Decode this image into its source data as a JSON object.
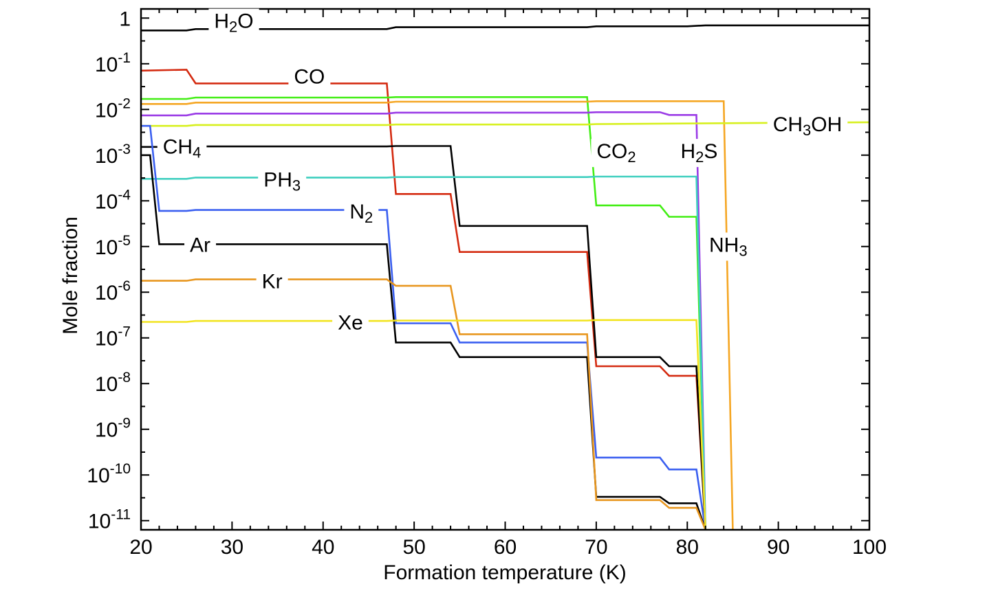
{
  "chart_data": {
    "type": "line",
    "title": "",
    "xlabel": "Formation temperature (K)",
    "ylabel": "Mole fraction",
    "xlim": [
      20,
      100
    ],
    "ylim_log10": [
      -11.2,
      0.2
    ],
    "y_scale": "log",
    "grid": false,
    "x_ticks": [
      {
        "value": 20,
        "label": "20"
      },
      {
        "value": 30,
        "label": "30"
      },
      {
        "value": 40,
        "label": "40"
      },
      {
        "value": 50,
        "label": "50"
      },
      {
        "value": 60,
        "label": "60"
      },
      {
        "value": 70,
        "label": "70"
      },
      {
        "value": 80,
        "label": "80"
      },
      {
        "value": 90,
        "label": "90"
      },
      {
        "value": 100,
        "label": "100"
      }
    ],
    "y_ticks": [
      {
        "exp": 0,
        "base": "1",
        "sup": ""
      },
      {
        "exp": -1,
        "base": "10",
        "sup": "-1"
      },
      {
        "exp": -2,
        "base": "10",
        "sup": "-2"
      },
      {
        "exp": -3,
        "base": "10",
        "sup": "-3"
      },
      {
        "exp": -4,
        "base": "10",
        "sup": "-4"
      },
      {
        "exp": -5,
        "base": "10",
        "sup": "-5"
      },
      {
        "exp": -6,
        "base": "10",
        "sup": "-6"
      },
      {
        "exp": -7,
        "base": "10",
        "sup": "-7"
      },
      {
        "exp": -8,
        "base": "10",
        "sup": "-8"
      },
      {
        "exp": -9,
        "base": "10",
        "sup": "-9"
      },
      {
        "exp": -10,
        "base": "10",
        "sup": "-10"
      },
      {
        "exp": -11,
        "base": "10",
        "sup": "-11"
      }
    ],
    "series": [
      {
        "name": "H2O",
        "label_parts": [
          {
            "t": "H"
          },
          {
            "t": "2",
            "sub": true
          },
          {
            "t": "O"
          }
        ],
        "color": "#000000",
        "label_at": {
          "x": 30.2,
          "log": -0.05
        },
        "points": [
          [
            20,
            -0.27
          ],
          [
            25,
            -0.27
          ],
          [
            26,
            -0.24
          ],
          [
            47,
            -0.24
          ],
          [
            48,
            -0.2
          ],
          [
            69,
            -0.2
          ],
          [
            70,
            -0.18
          ],
          [
            80,
            -0.18
          ],
          [
            82,
            -0.16
          ],
          [
            100,
            -0.16
          ]
        ]
      },
      {
        "name": "CO",
        "label_parts": [
          {
            "t": "CO"
          }
        ],
        "color": "#d42a10",
        "label_at": {
          "x": 38.5,
          "log": -1.27
        },
        "points": [
          [
            20,
            -1.15
          ],
          [
            25,
            -1.13
          ],
          [
            26,
            -1.43
          ],
          [
            47,
            -1.43
          ],
          [
            48,
            -3.85
          ],
          [
            54,
            -3.85
          ],
          [
            55,
            -5.12
          ],
          [
            69,
            -5.12
          ],
          [
            70,
            -7.62
          ],
          [
            77,
            -7.62
          ],
          [
            78,
            -7.83
          ],
          [
            81,
            -7.83
          ],
          [
            82,
            -11.2
          ]
        ]
      },
      {
        "name": "CO2",
        "label_parts": [
          {
            "t": "CO"
          },
          {
            "t": "2",
            "sub": true
          }
        ],
        "color": "#42ee14",
        "label_at": {
          "x": 72.2,
          "log": -2.9
        },
        "points": [
          [
            20,
            -1.77
          ],
          [
            25,
            -1.77
          ],
          [
            26,
            -1.74
          ],
          [
            47,
            -1.74
          ],
          [
            48,
            -1.73
          ],
          [
            69,
            -1.73
          ],
          [
            70,
            -4.1
          ],
          [
            77,
            -4.1
          ],
          [
            78,
            -4.35
          ],
          [
            81,
            -4.35
          ],
          [
            82,
            -11.2
          ]
        ]
      },
      {
        "name": "NH3",
        "label_parts": [
          {
            "t": "NH"
          },
          {
            "t": "3",
            "sub": true
          }
        ],
        "color": "#f5a623",
        "label_at": {
          "x": 84.5,
          "log": -4.95
        },
        "points": [
          [
            20,
            -1.88
          ],
          [
            25,
            -1.88
          ],
          [
            26,
            -1.85
          ],
          [
            47,
            -1.85
          ],
          [
            48,
            -1.83
          ],
          [
            69,
            -1.83
          ],
          [
            70,
            -1.82
          ],
          [
            84,
            -1.82
          ],
          [
            85,
            -11.2
          ]
        ]
      },
      {
        "name": "H2S",
        "label_parts": [
          {
            "t": "H"
          },
          {
            "t": "2",
            "sub": true
          },
          {
            "t": "S"
          }
        ],
        "color": "#9a3be6",
        "label_at": {
          "x": 81.3,
          "log": -2.9
        },
        "points": [
          [
            20,
            -2.13
          ],
          [
            25,
            -2.13
          ],
          [
            26,
            -2.09
          ],
          [
            47,
            -2.09
          ],
          [
            48,
            -2.07
          ],
          [
            69,
            -2.07
          ],
          [
            70,
            -2.06
          ],
          [
            77,
            -2.06
          ],
          [
            78,
            -2.12
          ],
          [
            81,
            -2.12
          ],
          [
            82,
            -11.2
          ]
        ]
      },
      {
        "name": "CH3OH",
        "label_parts": [
          {
            "t": "CH"
          },
          {
            "t": "3",
            "sub": true
          },
          {
            "t": "OH"
          }
        ],
        "color": "#d7f01e",
        "label_at": {
          "x": 93.2,
          "log": -2.31
        },
        "points": [
          [
            20,
            -2.36
          ],
          [
            25,
            -2.36
          ],
          [
            26,
            -2.34
          ],
          [
            47,
            -2.34
          ],
          [
            48,
            -2.33
          ],
          [
            69,
            -2.33
          ],
          [
            70,
            -2.32
          ],
          [
            100,
            -2.28
          ]
        ]
      },
      {
        "name": "CH4",
        "label_parts": [
          {
            "t": "CH"
          },
          {
            "t": "4",
            "sub": true
          }
        ],
        "color": "#000000",
        "label_at": {
          "x": 24.5,
          "log": -2.8
        },
        "points": [
          [
            20,
            -2.82
          ],
          [
            26,
            -2.82
          ],
          [
            27,
            -2.81
          ],
          [
            47,
            -2.81
          ],
          [
            48,
            -2.8
          ],
          [
            54,
            -2.8
          ],
          [
            55,
            -4.55
          ],
          [
            69,
            -4.55
          ],
          [
            70,
            -7.42
          ],
          [
            77,
            -7.42
          ],
          [
            78,
            -7.62
          ],
          [
            81,
            -7.62
          ],
          [
            82,
            -11.2
          ]
        ]
      },
      {
        "name": "PH3",
        "label_parts": [
          {
            "t": "PH"
          },
          {
            "t": "3",
            "sub": true
          }
        ],
        "color": "#3ecfbf",
        "label_at": {
          "x": 35.5,
          "log": -3.52
        },
        "points": [
          [
            20,
            -3.52
          ],
          [
            25,
            -3.52
          ],
          [
            26,
            -3.49
          ],
          [
            47,
            -3.49
          ],
          [
            48,
            -3.48
          ],
          [
            69,
            -3.48
          ],
          [
            70,
            -3.47
          ],
          [
            81,
            -3.47
          ],
          [
            82,
            -11.2
          ]
        ]
      },
      {
        "name": "N2",
        "label_parts": [
          {
            "t": "N"
          },
          {
            "t": "2",
            "sub": true
          }
        ],
        "color": "#3a5ff0",
        "label_at": {
          "x": 44.2,
          "log": -4.22
        },
        "points": [
          [
            20,
            -2.36
          ],
          [
            21,
            -2.36
          ],
          [
            22,
            -4.22
          ],
          [
            25,
            -4.22
          ],
          [
            26,
            -4.2
          ],
          [
            47,
            -4.2
          ],
          [
            48,
            -6.68
          ],
          [
            54,
            -6.68
          ],
          [
            55,
            -7.1
          ],
          [
            69,
            -7.1
          ],
          [
            70,
            -9.62
          ],
          [
            77,
            -9.62
          ],
          [
            78,
            -9.88
          ],
          [
            81,
            -9.88
          ],
          [
            82,
            -11.2
          ]
        ]
      },
      {
        "name": "Ar",
        "label_parts": [
          {
            "t": "Ar"
          }
        ],
        "color": "#000000",
        "label_at": {
          "x": 26.5,
          "log": -4.95
        },
        "points": [
          [
            20,
            -3.0
          ],
          [
            21,
            -3.0
          ],
          [
            22,
            -4.95
          ],
          [
            47,
            -4.95
          ],
          [
            48,
            -7.1
          ],
          [
            54,
            -7.1
          ],
          [
            55,
            -7.42
          ],
          [
            69,
            -7.42
          ],
          [
            70,
            -10.48
          ],
          [
            77,
            -10.48
          ],
          [
            78,
            -10.62
          ],
          [
            81,
            -10.62
          ],
          [
            82,
            -11.2
          ]
        ]
      },
      {
        "name": "Kr",
        "label_parts": [
          {
            "t": "Kr"
          }
        ],
        "color": "#e8961e",
        "label_at": {
          "x": 34.4,
          "log": -5.75
        },
        "points": [
          [
            20,
            -5.75
          ],
          [
            25,
            -5.75
          ],
          [
            26,
            -5.72
          ],
          [
            47,
            -5.72
          ],
          [
            48,
            -5.86
          ],
          [
            54,
            -5.86
          ],
          [
            55,
            -6.92
          ],
          [
            69,
            -6.92
          ],
          [
            70,
            -10.55
          ],
          [
            77,
            -10.55
          ],
          [
            78,
            -10.72
          ],
          [
            81,
            -10.72
          ],
          [
            82,
            -11.2
          ]
        ]
      },
      {
        "name": "Xe",
        "label_parts": [
          {
            "t": "Xe"
          }
        ],
        "color": "#f2e41e",
        "label_at": {
          "x": 43.0,
          "log": -6.65
        },
        "points": [
          [
            20,
            -6.65
          ],
          [
            25,
            -6.65
          ],
          [
            26,
            -6.63
          ],
          [
            47,
            -6.63
          ],
          [
            48,
            -6.62
          ],
          [
            69,
            -6.62
          ],
          [
            70,
            -6.61
          ],
          [
            81,
            -6.61
          ],
          [
            82,
            -11.2
          ]
        ]
      }
    ]
  }
}
